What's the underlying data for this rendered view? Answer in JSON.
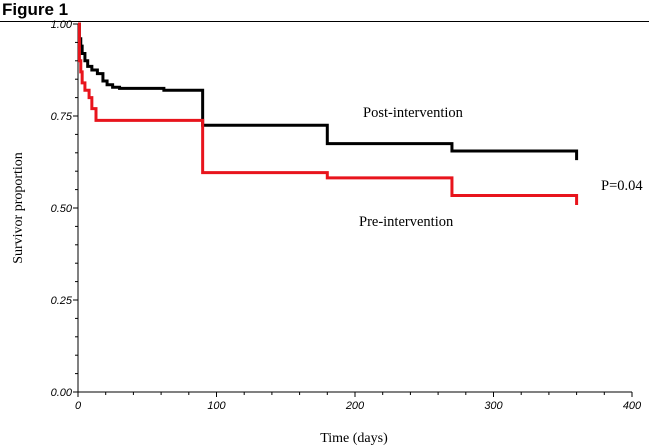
{
  "figure": {
    "label": "Figure 1"
  },
  "chart_data": {
    "type": "line",
    "subtype": "kaplan-meier step",
    "xlabel": "Time (days)",
    "ylabel": "Survivor proportion",
    "xlim": [
      0,
      400
    ],
    "ylim": [
      0,
      1
    ],
    "xticks": [
      0,
      100,
      200,
      300,
      400
    ],
    "xtick_labels": [
      "0",
      "100",
      "200",
      "300",
      "400"
    ],
    "yticks": [
      0,
      0.25,
      0.5,
      0.75,
      1
    ],
    "ytick_labels": [
      "0.00",
      "0.25",
      "0.50",
      "0.75",
      "1.00"
    ],
    "grid": false,
    "series": [
      {
        "name": "Post-intervention",
        "color": "#000000",
        "points": [
          [
            0,
            1.0
          ],
          [
            1,
            0.96
          ],
          [
            2,
            0.94
          ],
          [
            3,
            0.92
          ],
          [
            5,
            0.9
          ],
          [
            7,
            0.885
          ],
          [
            10,
            0.875
          ],
          [
            14,
            0.865
          ],
          [
            18,
            0.845
          ],
          [
            21,
            0.835
          ],
          [
            25,
            0.828
          ],
          [
            30,
            0.825
          ],
          [
            62,
            0.82
          ],
          [
            90,
            0.725
          ],
          [
            180,
            0.675
          ],
          [
            270,
            0.655
          ],
          [
            360,
            0.63
          ]
        ]
      },
      {
        "name": "Pre-intervention",
        "color": "#e8141c",
        "points": [
          [
            0,
            1.0
          ],
          [
            1,
            0.9
          ],
          [
            2,
            0.87
          ],
          [
            3,
            0.84
          ],
          [
            5,
            0.82
          ],
          [
            8,
            0.8
          ],
          [
            10,
            0.77
          ],
          [
            13,
            0.738
          ],
          [
            90,
            0.596
          ],
          [
            180,
            0.582
          ],
          [
            270,
            0.534
          ],
          [
            360,
            0.508
          ]
        ]
      }
    ],
    "annotations": {
      "post_label": "Post-intervention",
      "pre_label": "Pre-intervention",
      "p_value": "P=0.04"
    }
  }
}
